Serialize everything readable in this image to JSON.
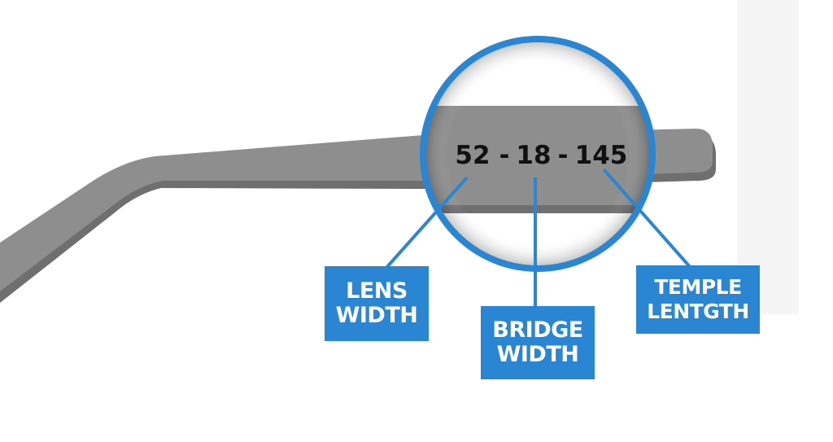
{
  "measurement": {
    "lens": "52",
    "bridge": "18",
    "temple": "145",
    "separator": "-"
  },
  "labels": {
    "lens_width": [
      "LENS",
      "WIDTH"
    ],
    "bridge_width": [
      "BRIDGE",
      "WIDTH"
    ],
    "temple_length": [
      "TEMPLE",
      "LENTGTH"
    ]
  },
  "colors": {
    "accent": "#2a85d2",
    "frame_gray": "#8e8e8e",
    "text": "#111111"
  }
}
